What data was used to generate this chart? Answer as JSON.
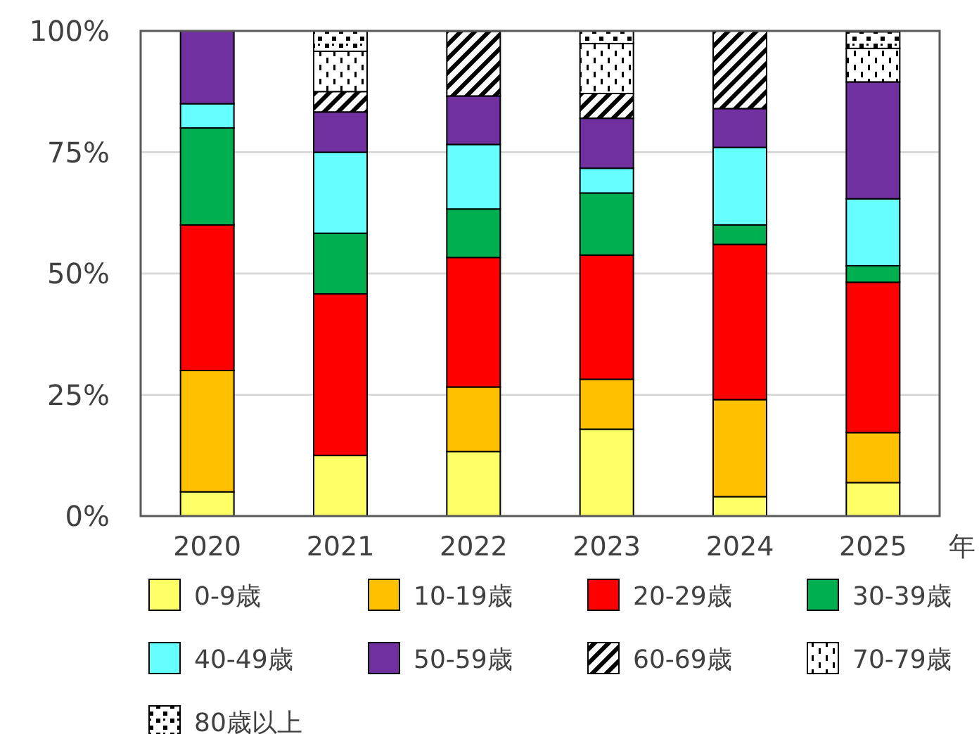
{
  "chart_data": {
    "type": "bar",
    "stacked": true,
    "xlabel": "年",
    "categories": [
      "2020",
      "2021",
      "2022",
      "2023",
      "2024",
      "2025"
    ],
    "ylim": [
      0,
      100
    ],
    "yticks": [
      {
        "value": 0,
        "label": "0%"
      },
      {
        "value": 25,
        "label": "25%"
      },
      {
        "value": 50,
        "label": "50%"
      },
      {
        "value": 75,
        "label": "75%"
      },
      {
        "value": 100,
        "label": "100%"
      }
    ],
    "grid": "y",
    "legend": "bottom",
    "series": [
      {
        "name": "0-9歳",
        "color": "#ffff66",
        "values": [
          5,
          12.5,
          13.3,
          17.9,
          4,
          6.9
        ]
      },
      {
        "name": "10-19歳",
        "color": "#ffc000",
        "values": [
          25,
          0,
          13.3,
          10.3,
          20,
          10.3
        ]
      },
      {
        "name": "20-29歳",
        "color": "#ff0000",
        "values": [
          30,
          33.3,
          26.7,
          25.6,
          32,
          31.0
        ]
      },
      {
        "name": "30-39歳",
        "color": "#00b050",
        "values": [
          20,
          12.5,
          10,
          12.8,
          4,
          3.4
        ]
      },
      {
        "name": "40-49歳",
        "color": "#66ffff",
        "values": [
          5,
          16.7,
          13.3,
          5.1,
          16,
          13.8
        ]
      },
      {
        "name": "50-59歳",
        "color": "#7030a0",
        "values": [
          15,
          8.3,
          10,
          10.3,
          8,
          24.1
        ]
      },
      {
        "name": "60-69歳",
        "color": "#000000",
        "values": [
          0,
          4.2,
          13.3,
          5.1,
          16,
          0
        ]
      },
      {
        "name": "70-79歳",
        "color": "#000000",
        "values": [
          0,
          8.3,
          0,
          10.3,
          0,
          6.9
        ]
      },
      {
        "name": "80歳以上",
        "color": "#000000",
        "values": [
          0,
          4.2,
          0,
          2.6,
          0,
          3.4
        ]
      }
    ]
  }
}
